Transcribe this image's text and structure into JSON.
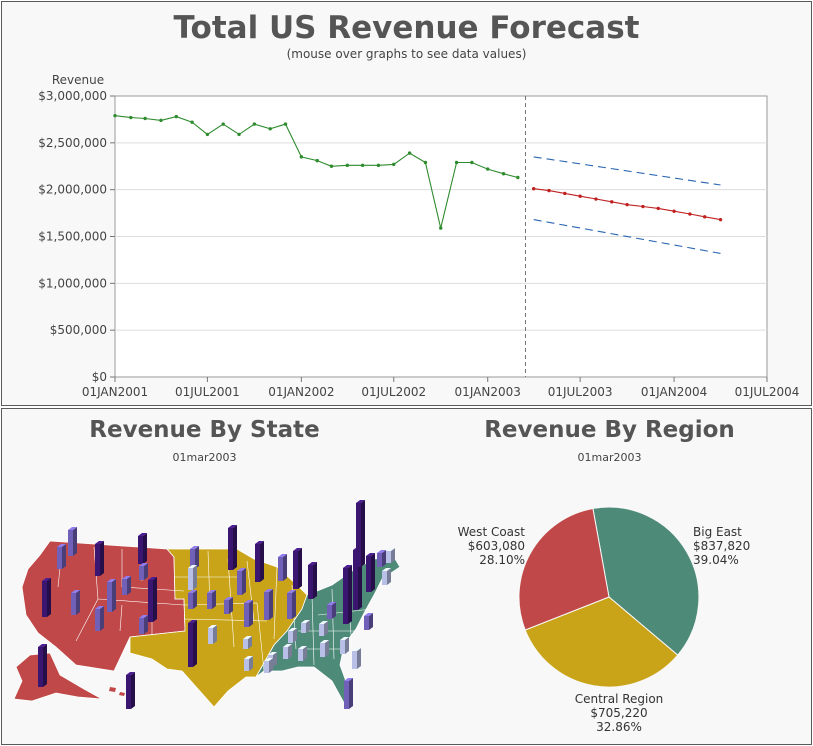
{
  "forecast": {
    "title": "Total US Revenue Forecast",
    "subtitle": "(mouse over graphs to see data values)"
  },
  "chart_data": [
    {
      "type": "line",
      "title": "Total US Revenue Forecast",
      "ylabel": "Revenue",
      "ylim": [
        0,
        3000000
      ],
      "y_ticks": [
        "$0",
        "$500,000",
        "$1,000,000",
        "$1,500,000",
        "$2,000,000",
        "$2,500,000",
        "$3,000,000"
      ],
      "x_ticks": [
        "01JAN2001",
        "01JUL2001",
        "01JAN2002",
        "01JUL2002",
        "01JAN2003",
        "01JUL2003",
        "01JAN2004",
        "01JUL2004"
      ],
      "forecast_start": "01MAR2003",
      "grid": true,
      "series": [
        {
          "values": [
            {
              "x": "2001-01-01",
              "y": 2790000
            },
            {
              "x": "2001-02-01",
              "y": 2770000
            },
            {
              "x": "2001-03-01",
              "y": 2760000
            },
            {
              "x": "2001-04-01",
              "y": 2740000
            },
            {
              "x": "2001-05-01",
              "y": 2780000
            },
            {
              "x": "2001-06-01",
              "y": 2720000
            },
            {
              "x": "2001-07-01",
              "y": 2590000
            },
            {
              "x": "2001-08-01",
              "y": 2700000
            },
            {
              "x": "2001-09-01",
              "y": 2590000
            },
            {
              "x": "2001-10-01",
              "y": 2700000
            },
            {
              "x": "2001-11-01",
              "y": 2650000
            },
            {
              "x": "2001-12-01",
              "y": 2700000
            },
            {
              "x": "2002-01-01",
              "y": 2350000
            },
            {
              "x": "2002-02-01",
              "y": 2310000
            },
            {
              "x": "2002-03-01",
              "y": 2250000
            },
            {
              "x": "2002-04-01",
              "y": 2260000
            },
            {
              "x": "2002-05-01",
              "y": 2260000
            },
            {
              "x": "2002-06-01",
              "y": 2260000
            },
            {
              "x": "2002-07-01",
              "y": 2270000
            },
            {
              "x": "2002-08-01",
              "y": 2390000
            },
            {
              "x": "2002-09-01",
              "y": 2290000
            },
            {
              "x": "2002-10-01",
              "y": 1590000
            },
            {
              "x": "2002-11-01",
              "y": 2290000
            },
            {
              "x": "2002-12-01",
              "y": 2290000
            },
            {
              "x": "2003-01-01",
              "y": 2220000
            },
            {
              "x": "2003-02-01",
              "y": 2170000
            },
            {
              "x": "2003-03-01",
              "y": 2130000
            }
          ]
        },
        {
          "values": [
            {
              "x": "2003-04-01",
              "y": 2010000
            },
            {
              "x": "2003-05-01",
              "y": 1990000
            },
            {
              "x": "2003-06-01",
              "y": 1960000
            },
            {
              "x": "2003-07-01",
              "y": 1930000
            },
            {
              "x": "2003-08-01",
              "y": 1900000
            },
            {
              "x": "2003-09-01",
              "y": 1870000
            },
            {
              "x": "2003-10-01",
              "y": 1840000
            },
            {
              "x": "2003-11-01",
              "y": 1820000
            },
            {
              "x": "2003-12-01",
              "y": 1800000
            },
            {
              "x": "2004-01-01",
              "y": 1770000
            },
            {
              "x": "2004-02-01",
              "y": 1740000
            },
            {
              "x": "2004-03-01",
              "y": 1710000
            },
            {
              "x": "2004-04-01",
              "y": 1680000
            }
          ]
        },
        {
          "values": [
            {
              "x": "2003-04-01",
              "y": 2350000
            },
            {
              "x": "2004-04-01",
              "y": 2050000
            }
          ]
        },
        {
          "values": [
            {
              "x": "2003-04-01",
              "y": 1680000
            },
            {
              "x": "2004-04-01",
              "y": 1320000
            }
          ]
        }
      ]
    },
    {
      "type": "pie",
      "title": "Revenue By Region",
      "subtitle": "01mar2003",
      "slices": [
        {
          "label": "Big East",
          "value": 837820,
          "value_label": "$837,820",
          "percent": "39.04%",
          "color": "#4e8a78"
        },
        {
          "label": "Central Region",
          "value": 705220,
          "value_label": "$705,220",
          "percent": "32.86%",
          "color": "#c9a418"
        },
        {
          "label": "West Coast",
          "value": 603080,
          "value_label": "$603,080",
          "percent": "28.10%",
          "color": "#c04848"
        }
      ]
    }
  ],
  "state_map": {
    "title": "Revenue By State",
    "subtitle": "01mar2003",
    "region_colors": {
      "west": "#c04848",
      "central": "#c9a418",
      "east": "#4e8a78"
    },
    "bar_colors": {
      "high": "#3a1670",
      "mid": "#7060b8",
      "low": "#b8c0e8"
    }
  },
  "colors": {
    "actual": "#2e8b2e",
    "forecast": "#c02020",
    "confidence": "#2a66b0",
    "gridline": "#dddddd"
  }
}
